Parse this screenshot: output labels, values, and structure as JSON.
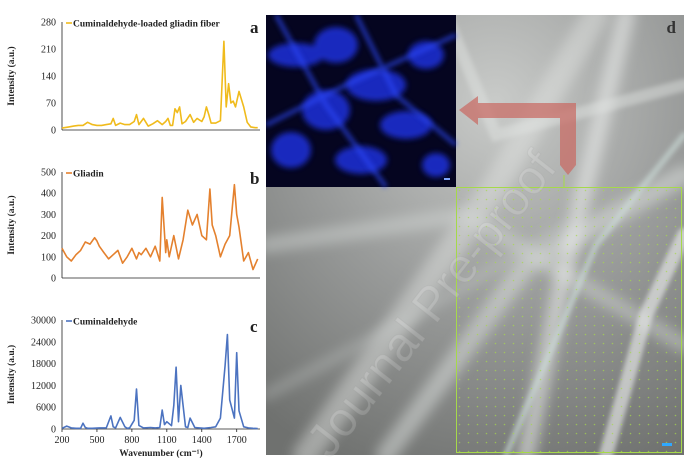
{
  "panels": {
    "a": {
      "letter": "a",
      "legend": "Cuminaldehyde-loaded gliadin fiber",
      "color": "#f0bb1c",
      "yticks": [
        "280",
        "210",
        "140",
        "70",
        "0"
      ],
      "ylim": [
        0,
        280
      ]
    },
    "b": {
      "letter": "b",
      "legend": "Gliadin",
      "color": "#e4812e",
      "yticks": [
        "500",
        "400",
        "300",
        "200",
        "100",
        "0"
      ],
      "ylim": [
        0,
        500
      ]
    },
    "c": {
      "letter": "c",
      "legend": "Cuminaldehyde",
      "color": "#4c73c0",
      "yticks": [
        "30000",
        "24000",
        "18000",
        "12000",
        "6000",
        "0"
      ],
      "ylim": [
        0,
        30000
      ],
      "xticks": [
        "200",
        "500",
        "800",
        "1100",
        "1400",
        "1700"
      ],
      "xlabel": "Wavenumber (cm⁻¹)"
    },
    "ylabel": "Intensity (a.u.)",
    "d": {
      "letter": "d"
    }
  },
  "chart_data": [
    {
      "type": "line",
      "title": "",
      "xlabel": "",
      "ylabel": "Intensity (a.u.)",
      "xlim": [
        200,
        1900
      ],
      "ylim": [
        0,
        280
      ],
      "series": [
        {
          "name": "Cuminaldehyde-loaded gliadin fiber",
          "x": [
            200,
            260,
            300,
            340,
            380,
            420,
            460,
            500,
            540,
            580,
            620,
            640,
            660,
            700,
            740,
            780,
            820,
            840,
            860,
            900,
            940,
            980,
            1020,
            1060,
            1090,
            1110,
            1130,
            1150,
            1170,
            1190,
            1210,
            1230,
            1260,
            1300,
            1330,
            1360,
            1400,
            1420,
            1440,
            1460,
            1480,
            1520,
            1560,
            1590,
            1610,
            1630,
            1650,
            1670,
            1690,
            1720,
            1760,
            1790,
            1820,
            1860,
            1880
          ],
          "y": [
            5,
            8,
            10,
            12,
            12,
            20,
            14,
            12,
            12,
            14,
            16,
            30,
            12,
            18,
            14,
            14,
            22,
            40,
            14,
            30,
            10,
            16,
            24,
            14,
            22,
            30,
            12,
            12,
            55,
            45,
            60,
            16,
            22,
            40,
            20,
            30,
            22,
            34,
            60,
            40,
            18,
            18,
            24,
            230,
            60,
            120,
            70,
            75,
            60,
            100,
            60,
            20,
            8,
            6,
            6
          ]
        }
      ]
    },
    {
      "type": "line",
      "title": "",
      "xlabel": "",
      "ylabel": "Intensity (a.u.)",
      "xlim": [
        200,
        1900
      ],
      "ylim": [
        0,
        500
      ],
      "series": [
        {
          "name": "Gliadin",
          "x": [
            200,
            240,
            280,
            320,
            360,
            400,
            440,
            480,
            500,
            520,
            560,
            600,
            640,
            680,
            720,
            760,
            800,
            840,
            860,
            880,
            920,
            960,
            1000,
            1040,
            1060,
            1090,
            1100,
            1120,
            1160,
            1200,
            1240,
            1280,
            1320,
            1360,
            1400,
            1440,
            1470,
            1490,
            1520,
            1560,
            1600,
            1640,
            1680,
            1700,
            1720,
            1760,
            1800,
            1840,
            1880
          ],
          "y": [
            140,
            100,
            80,
            110,
            130,
            170,
            160,
            190,
            175,
            150,
            120,
            90,
            110,
            130,
            70,
            100,
            140,
            90,
            120,
            110,
            140,
            100,
            150,
            80,
            380,
            120,
            180,
            100,
            200,
            90,
            180,
            320,
            250,
            300,
            200,
            180,
            420,
            250,
            200,
            100,
            160,
            200,
            440,
            300,
            240,
            80,
            120,
            40,
            90
          ]
        }
      ]
    },
    {
      "type": "line",
      "title": "",
      "xlabel": "Wavenumber (cm⁻¹)",
      "ylabel": "Intensity (a.u.)",
      "xlim": [
        200,
        1900
      ],
      "ylim": [
        0,
        30000
      ],
      "series": [
        {
          "name": "Cuminaldehyde",
          "x": [
            200,
            240,
            280,
            320,
            360,
            380,
            400,
            420,
            460,
            520,
            580,
            620,
            640,
            660,
            700,
            740,
            760,
            780,
            820,
            840,
            860,
            900,
            960,
            1000,
            1040,
            1060,
            1080,
            1100,
            1140,
            1160,
            1180,
            1200,
            1220,
            1260,
            1280,
            1300,
            1340,
            1380,
            1420,
            1480,
            1520,
            1560,
            1600,
            1620,
            1640,
            1680,
            1700,
            1720,
            1760,
            1800,
            1840,
            1880
          ],
          "y": [
            200,
            800,
            300,
            200,
            200,
            1600,
            400,
            200,
            200,
            300,
            300,
            3600,
            600,
            300,
            3200,
            600,
            200,
            300,
            2400,
            11000,
            1000,
            300,
            400,
            300,
            400,
            5200,
            1200,
            2000,
            900,
            6500,
            17000,
            2000,
            12000,
            600,
            400,
            3000,
            400,
            300,
            200,
            400,
            600,
            3000,
            17500,
            26000,
            8000,
            3000,
            21000,
            5000,
            600,
            300,
            200,
            100
          ]
        }
      ]
    }
  ]
}
